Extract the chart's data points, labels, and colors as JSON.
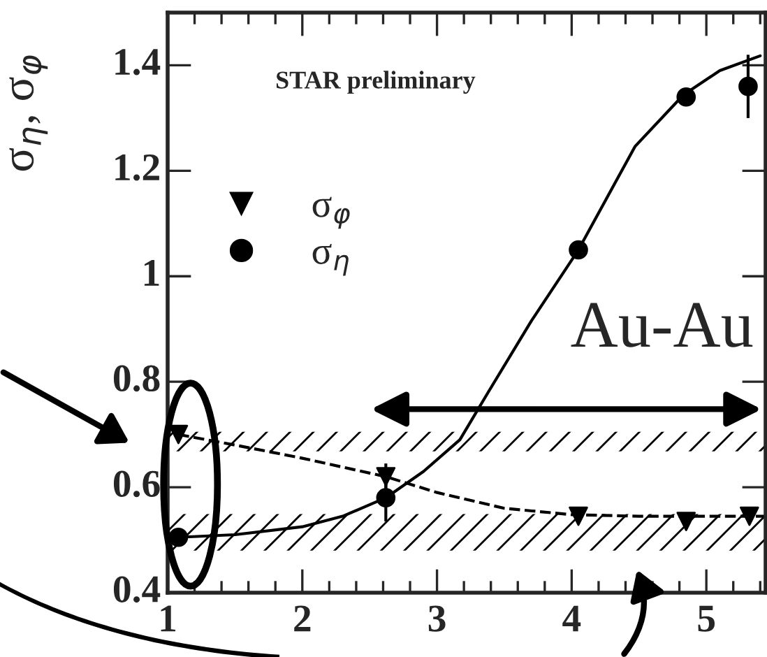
{
  "chart_data": {
    "type": "scatter",
    "ylabel": "σ$_{η}$, σ$_{φ}$",
    "annotations": [
      "STAR preliminary",
      "Au-Au"
    ],
    "series": [
      {
        "name": "σ$_{φ}$",
        "color": "#000000",
        "marker": "triangle",
        "x": [
          1.08,
          2.62,
          4.05,
          4.85,
          5.32
        ],
        "values": [
          0.7,
          0.62,
          0.545,
          0.535,
          0.545
        ],
        "errors": [
          null,
          0.025,
          null,
          null,
          null
        ]
      },
      {
        "name": "σ$_{η}$",
        "color": "#000000",
        "marker": "circle",
        "x": [
          1.08,
          2.62,
          4.05,
          4.85,
          5.31
        ],
        "values": [
          0.505,
          0.58,
          1.05,
          1.34,
          1.36
        ],
        "errors": [
          null,
          0.045,
          null,
          null,
          0.06
        ]
      },
      {
        "type": "line",
        "color": "#000000",
        "line_style": "solid",
        "marker": "none",
        "x": [
          1.08,
          1.5,
          2.0,
          2.3,
          2.62,
          2.9,
          3.17,
          3.38,
          3.7,
          4.05,
          4.47,
          4.83,
          5.1,
          5.4
        ],
        "values": [
          0.505,
          0.51,
          0.525,
          0.545,
          0.58,
          0.63,
          0.69,
          0.78,
          0.915,
          1.05,
          1.246,
          1.344,
          1.39,
          1.418
        ]
      },
      {
        "type": "line",
        "color": "#000000",
        "line_style": "dashed",
        "marker": "none",
        "x": [
          1.08,
          1.5,
          2.0,
          2.62,
          3.0,
          3.5,
          4.0,
          4.5,
          5.0,
          5.44
        ],
        "values": [
          0.7,
          0.68,
          0.655,
          0.62,
          0.59,
          0.56,
          0.548,
          0.545,
          0.545,
          0.545
        ]
      }
    ],
    "bands": [
      {
        "axis": "y",
        "from": 0.668,
        "to": 0.705
      },
      {
        "axis": "y",
        "from": 0.48,
        "to": 0.549
      }
    ],
    "xlim": [
      1,
      5.44
    ],
    "ylim": [
      0.4,
      1.5
    ],
    "xticks": [
      1,
      2,
      3,
      4,
      5
    ],
    "yticks": [
      0.4,
      0.6,
      0.8,
      1,
      1.2,
      1.4
    ],
    "grid": false,
    "legend": "left"
  }
}
